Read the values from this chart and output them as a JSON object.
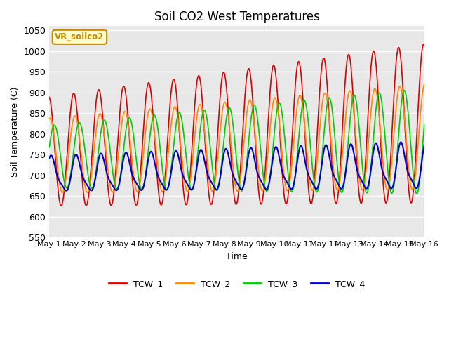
{
  "title": "Soil CO2 West Temperatures",
  "xlabel": "Time",
  "ylabel": "Soil Temperature (C)",
  "ylim": [
    550,
    1060
  ],
  "xlim": [
    0,
    15
  ],
  "xtick_labels": [
    "May 1",
    "May 2",
    "May 3",
    "May 4",
    "May 5",
    "May 6",
    "May 7",
    "May 8",
    "May 9",
    "May 10",
    "May 11",
    "May 12",
    "May 13",
    "May 14",
    "May 15",
    "May 16"
  ],
  "ytick_values": [
    550,
    600,
    650,
    700,
    750,
    800,
    850,
    900,
    950,
    1000,
    1050
  ],
  "bg_color": "#e8e8e8",
  "line_colors": {
    "TCW_1": "#dd0000",
    "TCW_2": "#ff8800",
    "TCW_3": "#00cc00",
    "TCW_4": "#0000cc"
  },
  "label_box_text": "VR_soilco2",
  "label_box_bg": "#ffffcc",
  "label_box_border": "#cc8800",
  "n_days": 15,
  "points_per_day": 48
}
